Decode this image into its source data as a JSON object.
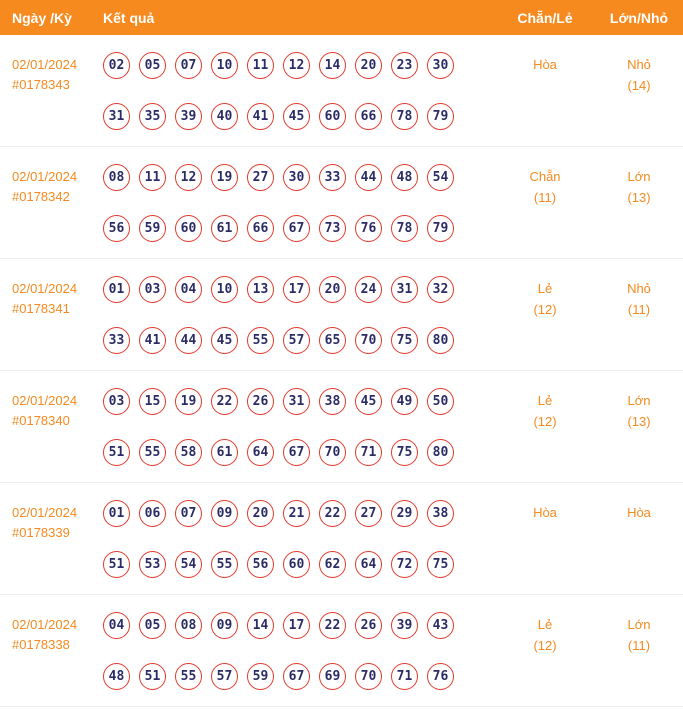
{
  "header": {
    "col_date": "Ngày /Kỳ",
    "col_result": "Kết quả",
    "col_chanle": "Chẵn/Lẻ",
    "col_lonnho": "Lớn/Nhỏ"
  },
  "colors": {
    "header_bg": "#F68A1F",
    "accent_orange": "#F68A1F",
    "ball_border": "#E23B2E",
    "ball_number": "#2B2B66"
  },
  "rows": [
    {
      "date": "02/01/2024",
      "id": "#0178343",
      "numbers_row1": [
        "02",
        "05",
        "07",
        "10",
        "11",
        "12",
        "14",
        "20",
        "23",
        "30"
      ],
      "numbers_row2": [
        "31",
        "35",
        "39",
        "40",
        "41",
        "45",
        "60",
        "66",
        "78",
        "79"
      ],
      "chan_le": "Hòa",
      "chan_le_count": "",
      "lon_nho": "Nhỏ",
      "lon_nho_count": "(14)"
    },
    {
      "date": "02/01/2024",
      "id": "#0178342",
      "numbers_row1": [
        "08",
        "11",
        "12",
        "19",
        "27",
        "30",
        "33",
        "44",
        "48",
        "54"
      ],
      "numbers_row2": [
        "56",
        "59",
        "60",
        "61",
        "66",
        "67",
        "73",
        "76",
        "78",
        "79"
      ],
      "chan_le": "Chẵn",
      "chan_le_count": "(11)",
      "lon_nho": "Lớn",
      "lon_nho_count": "(13)"
    },
    {
      "date": "02/01/2024",
      "id": "#0178341",
      "numbers_row1": [
        "01",
        "03",
        "04",
        "10",
        "13",
        "17",
        "20",
        "24",
        "31",
        "32"
      ],
      "numbers_row2": [
        "33",
        "41",
        "44",
        "45",
        "55",
        "57",
        "65",
        "70",
        "75",
        "80"
      ],
      "chan_le": "Lẻ",
      "chan_le_count": "(12)",
      "lon_nho": "Nhỏ",
      "lon_nho_count": "(11)"
    },
    {
      "date": "02/01/2024",
      "id": "#0178340",
      "numbers_row1": [
        "03",
        "15",
        "19",
        "22",
        "26",
        "31",
        "38",
        "45",
        "49",
        "50"
      ],
      "numbers_row2": [
        "51",
        "55",
        "58",
        "61",
        "64",
        "67",
        "70",
        "71",
        "75",
        "80"
      ],
      "chan_le": "Lẻ",
      "chan_le_count": "(12)",
      "lon_nho": "Lớn",
      "lon_nho_count": "(13)"
    },
    {
      "date": "02/01/2024",
      "id": "#0178339",
      "numbers_row1": [
        "01",
        "06",
        "07",
        "09",
        "20",
        "21",
        "22",
        "27",
        "29",
        "38"
      ],
      "numbers_row2": [
        "51",
        "53",
        "54",
        "55",
        "56",
        "60",
        "62",
        "64",
        "72",
        "75"
      ],
      "chan_le": "Hòa",
      "chan_le_count": "",
      "lon_nho": "Hòa",
      "lon_nho_count": ""
    },
    {
      "date": "02/01/2024",
      "id": "#0178338",
      "numbers_row1": [
        "04",
        "05",
        "08",
        "09",
        "14",
        "17",
        "22",
        "26",
        "39",
        "43"
      ],
      "numbers_row2": [
        "48",
        "51",
        "55",
        "57",
        "59",
        "67",
        "69",
        "70",
        "71",
        "76"
      ],
      "chan_le": "Lẻ",
      "chan_le_count": "(12)",
      "lon_nho": "Lớn",
      "lon_nho_count": "(11)"
    }
  ]
}
